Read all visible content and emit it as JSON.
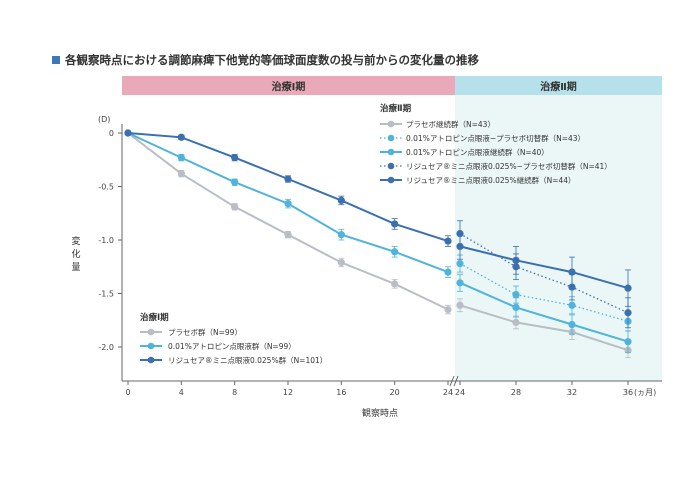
{
  "title": "各観察時点における調節麻痺下他覚的等価球面度数の投与前からの変化量の推移",
  "colors": {
    "placebo": "#b8bdc6",
    "atropine": "#4fb3dc",
    "riju": "#3a6fb0",
    "phase1_band": "#e9a9b8",
    "phase2_band": "#b6e0ea",
    "phase2_bg": "#eaf7f6",
    "title_marker": "#3a78b8"
  },
  "chart_data": {
    "type": "line",
    "phase_labels": [
      "治療Ⅰ期",
      "治療Ⅱ期"
    ],
    "ylabel": "変化量",
    "yunit": "(D)",
    "xlabel": "観察時点",
    "xunit": "(ヵ月)",
    "ylim": [
      -2.3,
      0.05
    ],
    "yticks": [
      0,
      -0.5,
      -1.0,
      -1.5,
      -2.0
    ],
    "ytick_labels": [
      "0",
      "-0.5",
      "-1.0",
      "-1.5",
      "-2.0"
    ],
    "phase1_xticks": [
      0,
      4,
      8,
      12,
      16,
      20,
      24
    ],
    "phase2_xticks": [
      24,
      28,
      32,
      36
    ],
    "legend_phase1_title": "治療Ⅰ期",
    "legend_phase2_title": "治療Ⅱ期",
    "phase1_series": [
      {
        "key": "placebo",
        "name": "プラセボ群（N=99）",
        "x": [
          0,
          4,
          8,
          12,
          16,
          20,
          24
        ],
        "y": [
          0,
          -0.38,
          -0.69,
          -0.95,
          -1.21,
          -1.41,
          -1.65
        ],
        "err": [
          0,
          0.03,
          0.03,
          0.03,
          0.04,
          0.04,
          0.04
        ]
      },
      {
        "key": "atropine",
        "name": "0.01%アトロピン点眼液群（N=99）",
        "x": [
          0,
          4,
          8,
          12,
          16,
          20,
          24
        ],
        "y": [
          0,
          -0.23,
          -0.46,
          -0.66,
          -0.95,
          -1.11,
          -1.3
        ],
        "err": [
          0,
          0.03,
          0.03,
          0.04,
          0.05,
          0.05,
          0.05
        ]
      },
      {
        "key": "riju",
        "name": "リジュセア®ミニ点眼液0.025%群（N=101）",
        "x": [
          0,
          4,
          8,
          12,
          16,
          20,
          24
        ],
        "y": [
          0,
          -0.04,
          -0.23,
          -0.43,
          -0.63,
          -0.85,
          -1.01
        ],
        "err": [
          0,
          0.02,
          0.03,
          0.03,
          0.04,
          0.05,
          0.05
        ]
      }
    ],
    "phase2_series": [
      {
        "key": "placebo",
        "dashed": false,
        "name": "プラセボ継続群（N=43）",
        "x": [
          24,
          28,
          32,
          36
        ],
        "y": [
          -1.61,
          -1.77,
          -1.86,
          -2.03
        ],
        "err": [
          0.06,
          0.06,
          0.07,
          0.07
        ]
      },
      {
        "key": "atropine",
        "dashed": true,
        "name": "0.01%アトロピン点眼液−プラセボ切替群（N=43）",
        "x": [
          24,
          28,
          32,
          36
        ],
        "y": [
          -1.22,
          -1.51,
          -1.61,
          -1.76
        ],
        "err": [
          0.08,
          0.08,
          0.08,
          0.09
        ]
      },
      {
        "key": "atropine",
        "dashed": false,
        "name": "0.01%アトロピン点眼液継続群（N=40）",
        "x": [
          24,
          28,
          32,
          36
        ],
        "y": [
          -1.4,
          -1.63,
          -1.79,
          -1.95
        ],
        "err": [
          0.08,
          0.09,
          0.09,
          0.1
        ]
      },
      {
        "key": "riju",
        "dashed": true,
        "name": "リジュセア®ミニ点眼液0.025%−プラセボ切替群（N=41）",
        "x": [
          24,
          28,
          32,
          36
        ],
        "y": [
          -0.94,
          -1.25,
          -1.44,
          -1.68
        ],
        "err": [
          0.12,
          0.12,
          0.12,
          0.14
        ]
      },
      {
        "key": "riju",
        "dashed": false,
        "name": "リジュセア®ミニ点眼液0.025%継続群（N=44）",
        "x": [
          24,
          28,
          32,
          36
        ],
        "y": [
          -1.06,
          -1.19,
          -1.3,
          -1.45
        ],
        "err": [
          0.12,
          0.13,
          0.14,
          0.17
        ]
      }
    ]
  }
}
